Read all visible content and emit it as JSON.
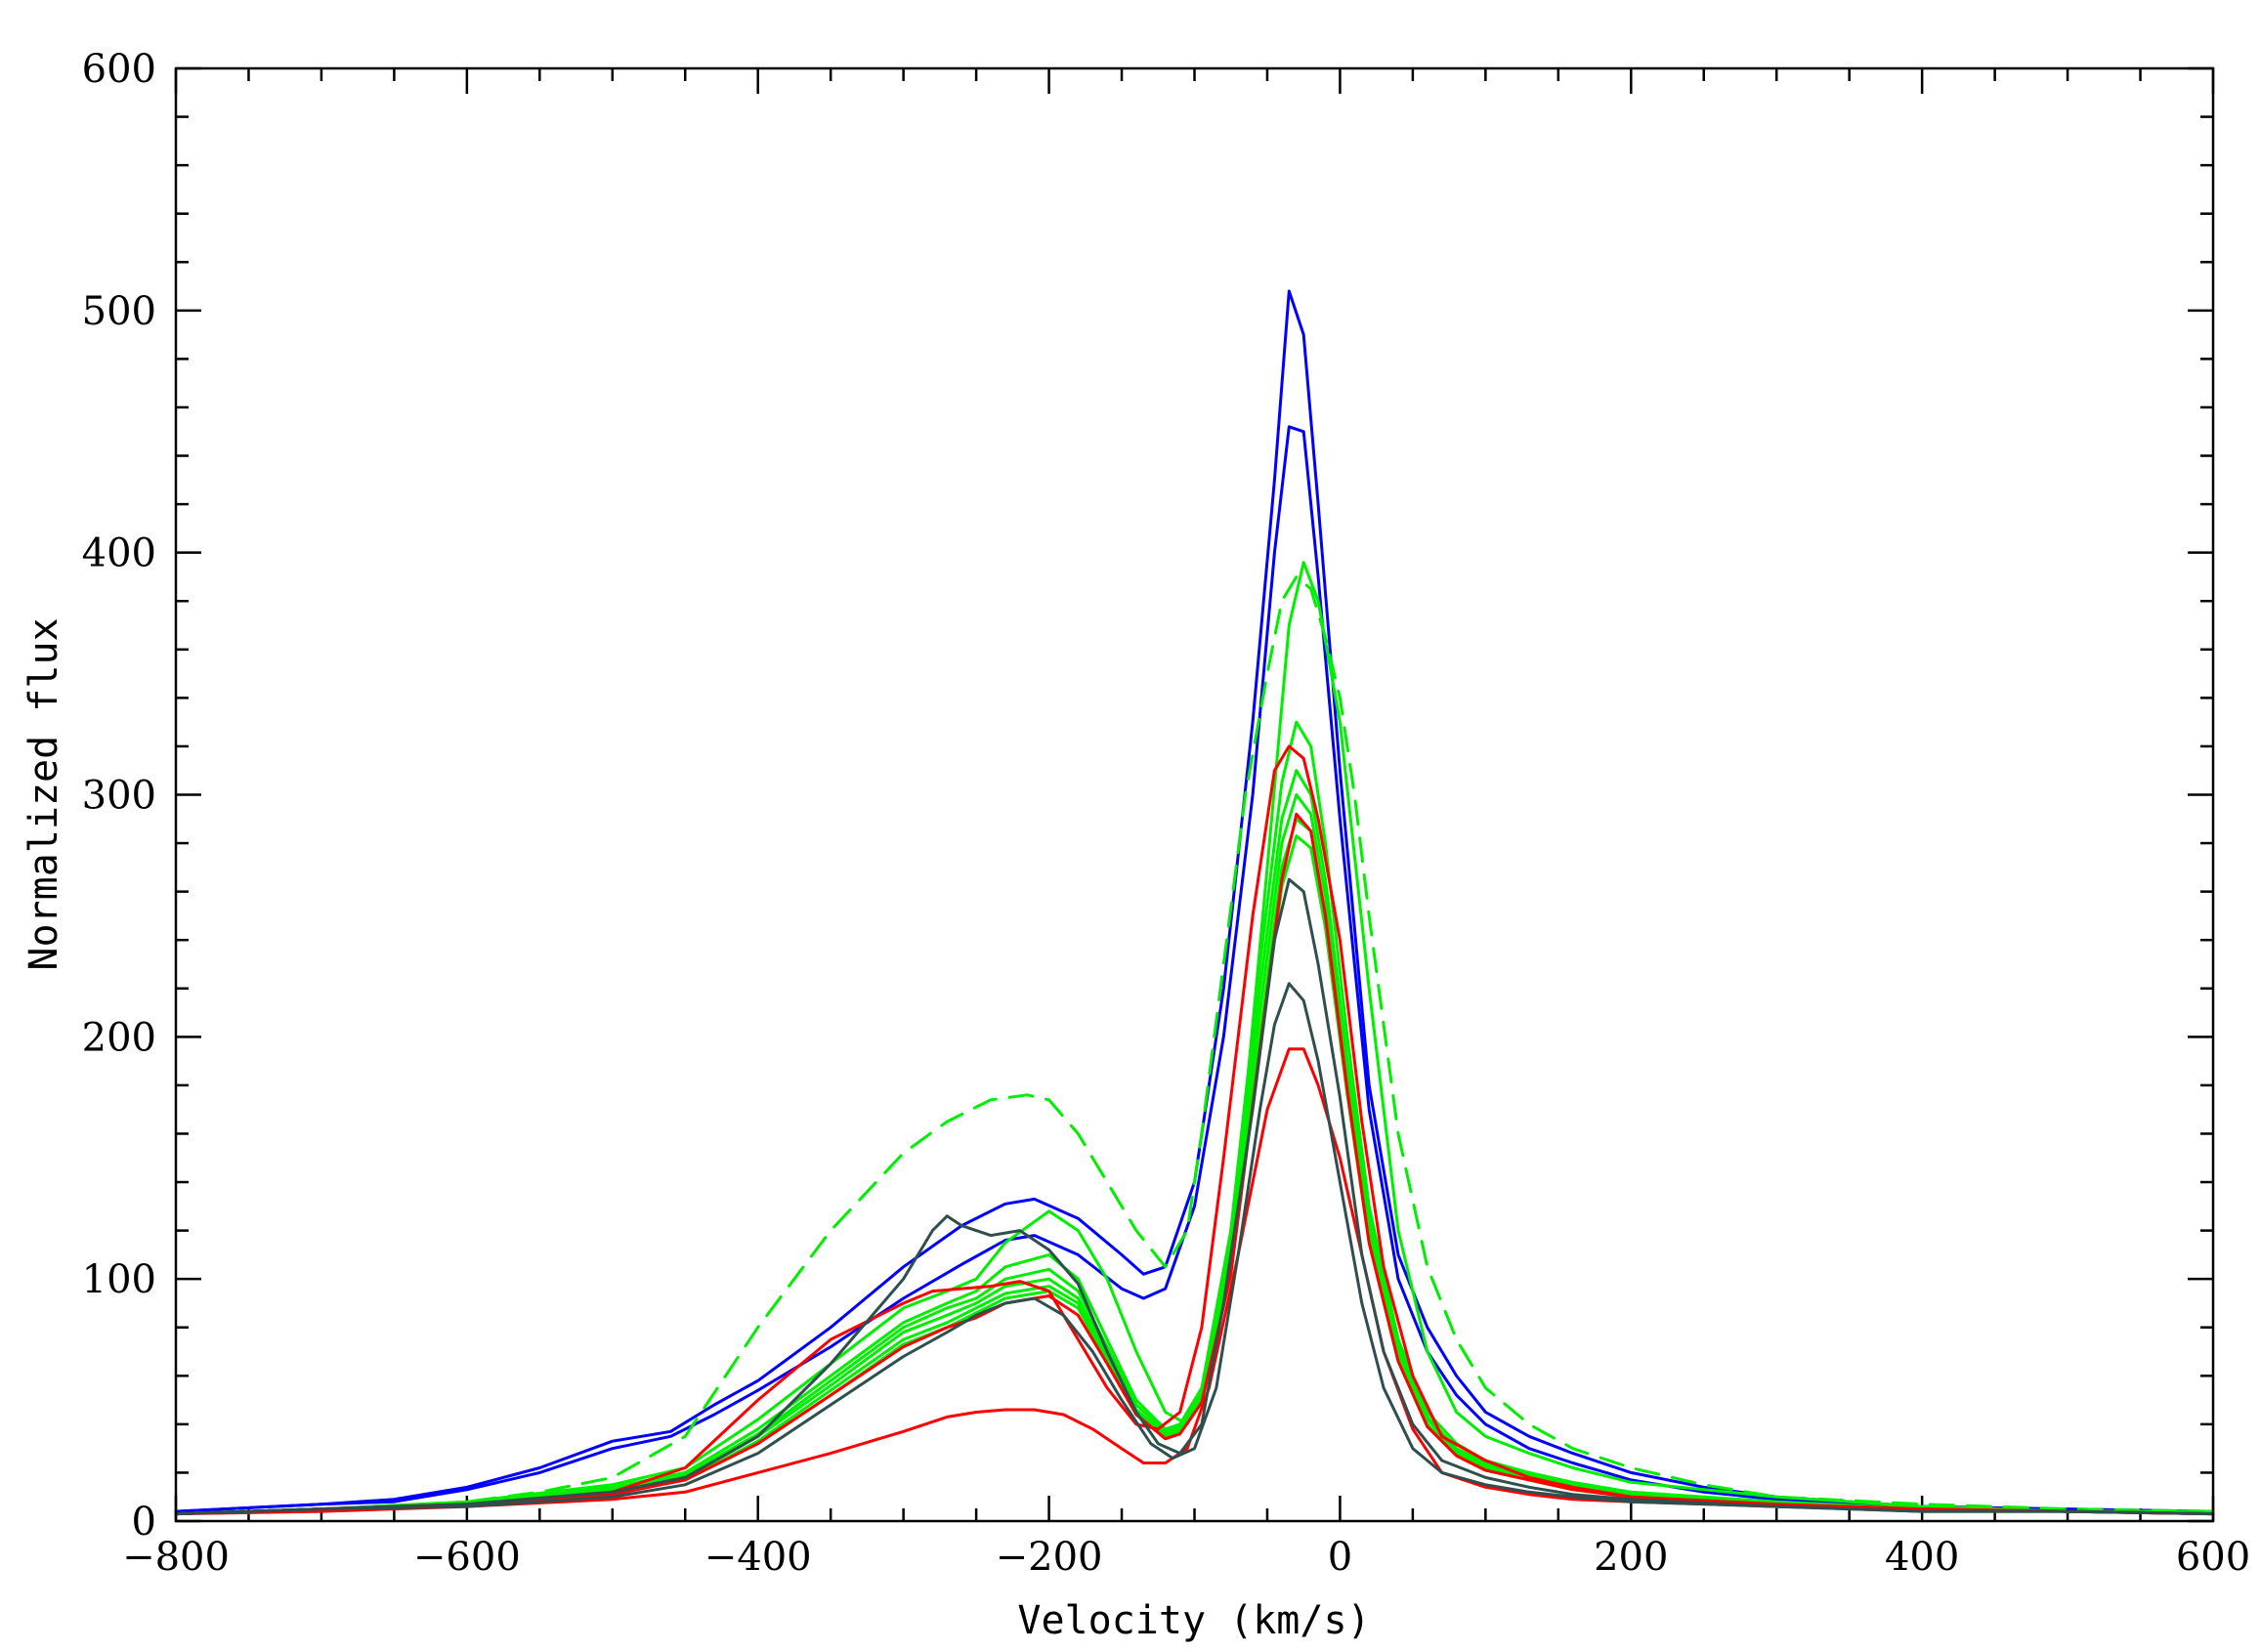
{
  "chart_data": {
    "type": "line",
    "xlabel": "Velocity (km/s)",
    "ylabel": "Normalized flux",
    "xlim": [
      -800,
      600
    ],
    "ylim": [
      0,
      600
    ],
    "x_ticks": [
      -800,
      -600,
      -400,
      -200,
      0,
      200,
      400,
      600
    ],
    "x_tick_labels": [
      "−800",
      "−600",
      "−400",
      "−200",
      "0",
      "200",
      "400",
      "600"
    ],
    "y_ticks": [
      0,
      100,
      200,
      300,
      400,
      500,
      600
    ],
    "y_tick_labels": [
      "0",
      "100",
      "200",
      "300",
      "400",
      "500",
      "600"
    ],
    "grid": false,
    "colors": {
      "blue": "#0000ff",
      "green": "#00ee00",
      "red": "#ff0000",
      "dark": "#2f4f4f"
    },
    "series": [
      {
        "color": "blue",
        "dashed": false,
        "x": [
          -800,
          -700,
          -650,
          -600,
          -550,
          -500,
          -460,
          -430,
          -400,
          -350,
          -300,
          -260,
          -230,
          -210,
          -180,
          -150,
          -135,
          -120,
          -100,
          -80,
          -60,
          -45,
          -35,
          -25,
          -15,
          0,
          20,
          40,
          60,
          80,
          100,
          130,
          160,
          200,
          250,
          300,
          400,
          500,
          600
        ],
        "y": [
          4,
          7,
          9,
          14,
          22,
          33,
          37,
          48,
          58,
          80,
          105,
          122,
          131,
          133,
          125,
          110,
          102,
          105,
          140,
          220,
          330,
          430,
          508,
          490,
          420,
          310,
          180,
          110,
          80,
          60,
          45,
          35,
          28,
          20,
          14,
          10,
          6,
          5,
          4
        ]
      },
      {
        "color": "blue",
        "dashed": false,
        "x": [
          -800,
          -700,
          -650,
          -600,
          -550,
          -500,
          -460,
          -430,
          -400,
          -350,
          -300,
          -260,
          -230,
          -210,
          -180,
          -150,
          -135,
          -120,
          -100,
          -80,
          -60,
          -45,
          -35,
          -25,
          -15,
          0,
          20,
          40,
          60,
          80,
          100,
          130,
          160,
          200,
          250,
          300,
          400,
          500,
          600
        ],
        "y": [
          4,
          7,
          8,
          13,
          20,
          30,
          35,
          44,
          54,
          72,
          92,
          106,
          116,
          118,
          110,
          96,
          92,
          96,
          130,
          200,
          300,
          400,
          452,
          450,
          390,
          290,
          170,
          100,
          70,
          52,
          40,
          30,
          24,
          17,
          12,
          9,
          6,
          4,
          4
        ]
      },
      {
        "color": "green",
        "dashed": true,
        "x": [
          -800,
          -700,
          -650,
          -600,
          -550,
          -500,
          -450,
          -400,
          -350,
          -300,
          -270,
          -240,
          -215,
          -200,
          -180,
          -160,
          -140,
          -120,
          -105,
          -95,
          -80,
          -65,
          -50,
          -40,
          -30,
          -20,
          -10,
          0,
          10,
          20,
          40,
          60,
          80,
          100,
          130,
          160,
          200,
          250,
          300,
          400,
          500,
          600
        ],
        "y": [
          3,
          5,
          6,
          8,
          12,
          18,
          35,
          80,
          120,
          152,
          165,
          174,
          176,
          174,
          160,
          140,
          120,
          105,
          120,
          160,
          230,
          300,
          350,
          380,
          390,
          385,
          365,
          340,
          300,
          250,
          160,
          105,
          75,
          55,
          40,
          30,
          22,
          15,
          10,
          7,
          5,
          4
        ]
      },
      {
        "color": "green",
        "dashed": false,
        "x": [
          -800,
          -700,
          -600,
          -500,
          -450,
          -400,
          -350,
          -300,
          -270,
          -250,
          -230,
          -200,
          -180,
          -160,
          -140,
          -120,
          -105,
          -90,
          -70,
          -50,
          -35,
          -25,
          -15,
          0,
          20,
          40,
          60,
          80,
          100,
          130,
          160,
          200,
          300,
          400,
          500,
          600
        ],
        "y": [
          3,
          5,
          8,
          15,
          22,
          42,
          65,
          88,
          95,
          100,
          115,
          128,
          120,
          100,
          70,
          45,
          40,
          60,
          140,
          270,
          370,
          396,
          380,
          330,
          220,
          120,
          70,
          45,
          35,
          28,
          22,
          16,
          10,
          6,
          4,
          4
        ]
      },
      {
        "color": "green",
        "dashed": false,
        "x": [
          -800,
          -700,
          -600,
          -500,
          -450,
          -400,
          -350,
          -300,
          -270,
          -250,
          -230,
          -200,
          -180,
          -160,
          -140,
          -120,
          -110,
          -95,
          -75,
          -55,
          -40,
          -30,
          -20,
          -10,
          5,
          20,
          40,
          60,
          80,
          100,
          130,
          160,
          200,
          300,
          400,
          500,
          600
        ],
        "y": [
          3,
          5,
          7,
          14,
          20,
          38,
          60,
          82,
          90,
          95,
          105,
          110,
          100,
          75,
          50,
          38,
          40,
          55,
          120,
          230,
          305,
          330,
          320,
          280,
          200,
          130,
          75,
          45,
          32,
          25,
          20,
          16,
          12,
          8,
          5,
          4,
          4
        ]
      },
      {
        "color": "green",
        "dashed": false,
        "x": [
          -800,
          -700,
          -600,
          -500,
          -450,
          -400,
          -350,
          -300,
          -270,
          -250,
          -230,
          -200,
          -180,
          -160,
          -140,
          -120,
          -110,
          -95,
          -75,
          -55,
          -40,
          -30,
          -20,
          -10,
          5,
          20,
          40,
          60,
          80,
          100,
          130,
          160,
          200,
          300,
          400,
          500,
          600
        ],
        "y": [
          3,
          5,
          7,
          13,
          19,
          36,
          58,
          80,
          88,
          92,
          100,
          104,
          95,
          72,
          48,
          37,
          39,
          53,
          115,
          220,
          290,
          310,
          300,
          265,
          190,
          125,
          72,
          43,
          30,
          24,
          19,
          15,
          11,
          7,
          5,
          4,
          4
        ]
      },
      {
        "color": "green",
        "dashed": false,
        "x": [
          -800,
          -700,
          -600,
          -500,
          -450,
          -400,
          -350,
          -300,
          -270,
          -250,
          -230,
          -200,
          -180,
          -160,
          -140,
          -120,
          -110,
          -95,
          -75,
          -55,
          -40,
          -30,
          -20,
          -10,
          5,
          20,
          40,
          60,
          80,
          100,
          130,
          160,
          200,
          300,
          400,
          500,
          600
        ],
        "y": [
          3,
          5,
          7,
          13,
          18,
          35,
          56,
          78,
          85,
          90,
          97,
          100,
          92,
          70,
          46,
          36,
          38,
          52,
          110,
          210,
          280,
          300,
          292,
          258,
          185,
          120,
          70,
          42,
          29,
          23,
          18,
          14,
          11,
          7,
          5,
          4,
          4
        ]
      },
      {
        "color": "green",
        "dashed": false,
        "x": [
          -800,
          -700,
          -600,
          -500,
          -450,
          -400,
          -350,
          -300,
          -270,
          -250,
          -230,
          -200,
          -180,
          -160,
          -140,
          -120,
          -110,
          -95,
          -75,
          -55,
          -40,
          -30,
          -20,
          -10,
          5,
          20,
          40,
          60,
          80,
          100,
          130,
          160,
          200,
          300,
          400,
          500,
          600
        ],
        "y": [
          3,
          5,
          7,
          12,
          17,
          33,
          54,
          75,
          82,
          88,
          94,
          97,
          90,
          68,
          45,
          35,
          37,
          50,
          105,
          200,
          270,
          290,
          285,
          250,
          180,
          118,
          68,
          40,
          28,
          22,
          17,
          14,
          10,
          7,
          5,
          4,
          4
        ]
      },
      {
        "color": "green",
        "dashed": false,
        "x": [
          -800,
          -700,
          -600,
          -500,
          -450,
          -400,
          -350,
          -300,
          -270,
          -250,
          -230,
          -200,
          -180,
          -160,
          -140,
          -120,
          -110,
          -95,
          -75,
          -55,
          -40,
          -30,
          -20,
          -10,
          5,
          20,
          40,
          60,
          80,
          100,
          130,
          160,
          200,
          300,
          400,
          500,
          600
        ],
        "y": [
          3,
          5,
          7,
          12,
          17,
          32,
          52,
          73,
          80,
          86,
          92,
          95,
          88,
          66,
          44,
          34,
          36,
          49,
          102,
          195,
          262,
          283,
          278,
          245,
          176,
          115,
          66,
          39,
          27,
          21,
          17,
          13,
          10,
          6,
          5,
          4,
          4
        ]
      },
      {
        "color": "red",
        "dashed": false,
        "x": [
          -800,
          -700,
          -600,
          -500,
          -450,
          -400,
          -350,
          -300,
          -280,
          -260,
          -240,
          -220,
          -200,
          -180,
          -160,
          -140,
          -125,
          -110,
          -95,
          -80,
          -60,
          -45,
          -35,
          -25,
          -15,
          0,
          15,
          30,
          50,
          70,
          100,
          130,
          160,
          200,
          300,
          400,
          500,
          600
        ],
        "y": [
          3,
          5,
          7,
          12,
          22,
          50,
          75,
          90,
          95,
          96,
          97,
          99,
          95,
          75,
          55,
          40,
          38,
          45,
          80,
          150,
          250,
          310,
          320,
          315,
          290,
          240,
          165,
          105,
          60,
          35,
          25,
          18,
          14,
          10,
          7,
          5,
          4,
          3
        ]
      },
      {
        "color": "red",
        "dashed": false,
        "x": [
          -800,
          -700,
          -600,
          -500,
          -450,
          -400,
          -350,
          -300,
          -270,
          -250,
          -230,
          -200,
          -180,
          -160,
          -140,
          -120,
          -110,
          -95,
          -75,
          -55,
          -40,
          -30,
          -20,
          -10,
          5,
          20,
          40,
          60,
          80,
          100,
          130,
          160,
          200,
          300,
          400,
          500,
          600
        ],
        "y": [
          3,
          5,
          7,
          11,
          17,
          32,
          52,
          72,
          80,
          84,
          90,
          93,
          85,
          65,
          44,
          34,
          36,
          49,
          102,
          195,
          265,
          292,
          285,
          250,
          178,
          115,
          66,
          39,
          27,
          21,
          17,
          13,
          10,
          6,
          5,
          4,
          3
        ]
      },
      {
        "color": "red",
        "dashed": false,
        "x": [
          -800,
          -700,
          -600,
          -500,
          -450,
          -400,
          -350,
          -300,
          -270,
          -250,
          -230,
          -210,
          -190,
          -170,
          -150,
          -135,
          -120,
          -105,
          -90,
          -70,
          -50,
          -35,
          -25,
          -15,
          0,
          15,
          30,
          50,
          70,
          100,
          130,
          160,
          200,
          300,
          400,
          500,
          600
        ],
        "y": [
          3,
          4,
          6,
          9,
          12,
          20,
          28,
          37,
          43,
          45,
          46,
          46,
          44,
          38,
          30,
          24,
          24,
          30,
          55,
          110,
          170,
          195,
          195,
          180,
          150,
          110,
          70,
          38,
          20,
          14,
          11,
          9,
          8,
          6,
          5,
          4,
          3
        ]
      },
      {
        "color": "dark",
        "dashed": false,
        "x": [
          -800,
          -700,
          -600,
          -500,
          -450,
          -400,
          -350,
          -300,
          -280,
          -270,
          -260,
          -240,
          -220,
          -200,
          -180,
          -160,
          -140,
          -125,
          -110,
          -95,
          -80,
          -60,
          -45,
          -35,
          -25,
          -15,
          0,
          15,
          30,
          50,
          70,
          100,
          130,
          160,
          200,
          300,
          400,
          500,
          600
        ],
        "y": [
          3,
          5,
          7,
          12,
          18,
          35,
          65,
          100,
          120,
          126,
          122,
          118,
          120,
          112,
          98,
          70,
          45,
          32,
          28,
          40,
          90,
          170,
          240,
          265,
          260,
          230,
          175,
          110,
          70,
          40,
          25,
          18,
          14,
          11,
          9,
          6,
          4,
          4,
          3
        ]
      },
      {
        "color": "dark",
        "dashed": false,
        "x": [
          -800,
          -700,
          -600,
          -500,
          -450,
          -400,
          -350,
          -300,
          -270,
          -250,
          -230,
          -210,
          -190,
          -170,
          -150,
          -130,
          -115,
          -100,
          -85,
          -70,
          -55,
          -45,
          -35,
          -25,
          -15,
          0,
          15,
          30,
          50,
          70,
          100,
          130,
          160,
          200,
          300,
          400,
          500,
          600
        ],
        "y": [
          3,
          5,
          6,
          10,
          15,
          28,
          48,
          68,
          78,
          85,
          90,
          92,
          85,
          70,
          50,
          32,
          26,
          30,
          55,
          110,
          170,
          205,
          222,
          215,
          190,
          140,
          90,
          55,
          30,
          20,
          15,
          12,
          10,
          8,
          6,
          4,
          4,
          3
        ]
      }
    ]
  }
}
